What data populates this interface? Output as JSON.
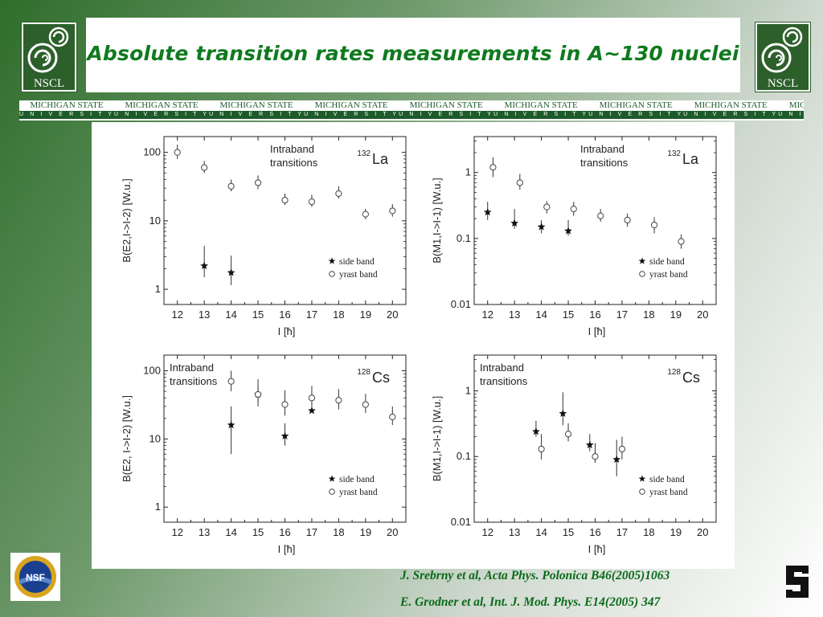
{
  "slide": {
    "title": "Absolute transition rates measurements in A~130 nuclei",
    "logo_text": "NSCL",
    "msu_top_text": "MICHIGAN STATE",
    "msu_bottom_text": "UNIVERSITY",
    "msu_repeat": 10,
    "nsf_text": "NSF",
    "references": [
      "J. Srebrny et al, Acta Phys. Polonica B46(2005)1063",
      "E. Grodner et al, Int. J. Mod. Phys. E14(2005) 347"
    ],
    "colors": {
      "green": "#0f7a1e",
      "msu_green": "#1d5b2a",
      "nscl_green": "#2d5f2b"
    }
  },
  "chart_data": [
    {
      "type": "scatter",
      "panel": "top-left",
      "ylog": true,
      "ylim": [
        0.6,
        170
      ],
      "xlim": [
        11.5,
        20.5
      ],
      "xticks": [
        12,
        13,
        14,
        15,
        16,
        17,
        18,
        19,
        20
      ],
      "yticks": [
        {
          "v": 1,
          "label": "1"
        },
        {
          "v": 10,
          "label": "10"
        },
        {
          "v": 100,
          "label": "100"
        }
      ],
      "ylabel": "B(E2,I->I-2) [W.u.]",
      "xlabel": "I [ħ]",
      "annotation": [
        "Intraband",
        "transitions"
      ],
      "annotation_pos": "top-center",
      "nucleus": {
        "mass": "132",
        "symbol": "La"
      },
      "legend": {
        "position": "bottom-right",
        "entries": [
          "side band",
          "yrast band"
        ]
      },
      "series": [
        {
          "name": "side band",
          "marker": "star",
          "x": [
            13,
            14
          ],
          "y": [
            2.2,
            1.75
          ],
          "err": [
            [
              1.5,
              4.3
            ],
            [
              1.15,
              3.1
            ]
          ]
        },
        {
          "name": "yrast band",
          "marker": "circle",
          "x": [
            12,
            13,
            14,
            15,
            16,
            17,
            18,
            19,
            20
          ],
          "y": [
            100,
            60,
            32,
            36,
            20,
            19,
            25,
            12.5,
            14
          ],
          "err": [
            [
              80,
              130
            ],
            [
              50,
              75
            ],
            [
              27,
              40
            ],
            [
              29,
              46
            ],
            [
              17,
              25
            ],
            [
              16,
              24
            ],
            [
              21,
              32
            ],
            [
              10.5,
              15
            ],
            [
              11.5,
              17.5
            ]
          ]
        }
      ]
    },
    {
      "type": "scatter",
      "panel": "top-right",
      "ylog": true,
      "ylim": [
        0.01,
        3.5
      ],
      "xlim": [
        11.5,
        20.5
      ],
      "xticks": [
        12,
        13,
        14,
        15,
        16,
        17,
        18,
        19,
        20
      ],
      "yticks": [
        {
          "v": 0.01,
          "label": "0.01"
        },
        {
          "v": 0.1,
          "label": "0.1"
        },
        {
          "v": 1,
          "label": "1"
        }
      ],
      "ylabel": "B(M1,I->I-1) [W.u.]",
      "xlabel": "I [ħ]",
      "annotation": [
        "Intraband",
        "transitions"
      ],
      "annotation_pos": "top-center",
      "nucleus": {
        "mass": "132",
        "symbol": "La"
      },
      "legend": {
        "position": "bottom-right",
        "entries": [
          "side band",
          "yrast band"
        ]
      },
      "series": [
        {
          "name": "side band",
          "marker": "star",
          "x": [
            12,
            13,
            14,
            15
          ],
          "y": [
            0.25,
            0.17,
            0.15,
            0.13
          ],
          "err": [
            [
              0.19,
              0.36
            ],
            [
              0.14,
              0.28
            ],
            [
              0.12,
              0.19
            ],
            [
              0.11,
              0.19
            ]
          ]
        },
        {
          "name": "yrast band",
          "marker": "circle",
          "x": [
            12.2,
            13.2,
            14.2,
            15.2,
            16.2,
            17.2,
            18.2,
            19.2
          ],
          "y": [
            1.2,
            0.7,
            0.3,
            0.28,
            0.22,
            0.19,
            0.16,
            0.09
          ],
          "err": [
            [
              0.85,
              1.7
            ],
            [
              0.55,
              0.95
            ],
            [
              0.24,
              0.37
            ],
            [
              0.22,
              0.36
            ],
            [
              0.18,
              0.28
            ],
            [
              0.15,
              0.24
            ],
            [
              0.12,
              0.21
            ],
            [
              0.07,
              0.115
            ]
          ]
        }
      ]
    },
    {
      "type": "scatter",
      "panel": "bottom-left",
      "ylog": true,
      "ylim": [
        0.6,
        170
      ],
      "xlim": [
        11.5,
        20.5
      ],
      "xticks": [
        12,
        13,
        14,
        15,
        16,
        17,
        18,
        19,
        20
      ],
      "yticks": [
        {
          "v": 1,
          "label": "1"
        },
        {
          "v": 10,
          "label": "10"
        },
        {
          "v": 100,
          "label": "100"
        }
      ],
      "ylabel": "B(E2, I->I-2) [W.u.]",
      "xlabel": "I [ħ]",
      "annotation": [
        "Intraband",
        "transitions"
      ],
      "annotation_pos": "top-left",
      "nucleus": {
        "mass": "128",
        "symbol": "Cs"
      },
      "legend": {
        "position": "bottom-right",
        "entries": [
          "side band",
          "yrast band"
        ]
      },
      "series": [
        {
          "name": "side band",
          "marker": "star",
          "x": [
            14,
            15,
            16,
            17
          ],
          "y": [
            16,
            45,
            11,
            26
          ],
          "err": [
            [
              6,
              30
            ],
            [
              30,
              75
            ],
            [
              8,
              17
            ],
            [
              26,
              26
            ]
          ]
        },
        {
          "name": "yrast band",
          "marker": "circle",
          "x": [
            14,
            15,
            16,
            17,
            18,
            19,
            20
          ],
          "y": [
            70,
            45,
            32,
            40,
            37,
            32,
            21
          ],
          "err": [
            [
              50,
              100
            ],
            [
              35,
              60
            ],
            [
              22,
              52
            ],
            [
              28,
              60
            ],
            [
              27,
              54
            ],
            [
              24,
              46
            ],
            [
              16,
              30
            ]
          ]
        }
      ]
    },
    {
      "type": "scatter",
      "panel": "bottom-right",
      "ylog": true,
      "ylim": [
        0.01,
        3.5
      ],
      "xlim": [
        11.5,
        20.5
      ],
      "xticks": [
        12,
        13,
        14,
        15,
        16,
        17,
        18,
        19,
        20
      ],
      "yticks": [
        {
          "v": 0.01,
          "label": "0.01"
        },
        {
          "v": 0.1,
          "label": "0.1"
        },
        {
          "v": 1,
          "label": "1"
        }
      ],
      "ylabel": "B(M1,I->I-1) [W.u.]",
      "xlabel": "I [ħ]",
      "annotation": [
        "Intraband",
        "transitions"
      ],
      "annotation_pos": "top-left",
      "nucleus": {
        "mass": "128",
        "symbol": "Cs"
      },
      "legend": {
        "position": "bottom-right",
        "entries": [
          "side band",
          "yrast band"
        ]
      },
      "series": [
        {
          "name": "side band",
          "marker": "star",
          "x": [
            13.8,
            14.8,
            15.8,
            16.8
          ],
          "y": [
            0.24,
            0.45,
            0.15,
            0.09
          ],
          "err": [
            [
              0.2,
              0.35
            ],
            [
              0.3,
              0.95
            ],
            [
              0.12,
              0.22
            ],
            [
              0.05,
              0.18
            ]
          ]
        },
        {
          "name": "yrast band",
          "marker": "circle",
          "x": [
            14,
            15,
            16,
            17
          ],
          "y": [
            0.13,
            0.22,
            0.1,
            0.13
          ],
          "err": [
            [
              0.09,
              0.22
            ],
            [
              0.17,
              0.32
            ],
            [
              0.08,
              0.16
            ],
            [
              0.09,
              0.2
            ]
          ]
        }
      ]
    }
  ]
}
